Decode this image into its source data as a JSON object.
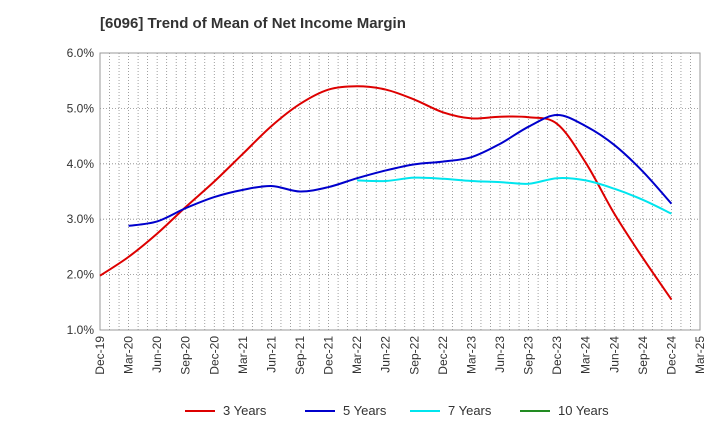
{
  "chart_data": {
    "type": "line",
    "title": "[6096]  Trend of Mean of Net Income Margin",
    "xlabel": "",
    "ylabel": "",
    "ylim": [
      1.0,
      6.0
    ],
    "y_ticks": [
      "1.0%",
      "2.0%",
      "3.0%",
      "4.0%",
      "5.0%",
      "6.0%"
    ],
    "x_ticks": [
      "Dec-19",
      "Mar-20",
      "Jun-20",
      "Sep-20",
      "Dec-20",
      "Mar-21",
      "Jun-21",
      "Sep-21",
      "Dec-21",
      "Mar-22",
      "Jun-22",
      "Sep-22",
      "Dec-22",
      "Mar-23",
      "Jun-23",
      "Sep-23",
      "Dec-23",
      "Mar-24",
      "Jun-24",
      "Sep-24",
      "Dec-24",
      "Mar-25"
    ],
    "grid": true,
    "legend_position": "bottom",
    "series": [
      {
        "name": "3 Years",
        "color": "#dd0000",
        "x": [
          "Dec-19",
          "Mar-20",
          "Jun-20",
          "Sep-20",
          "Dec-20",
          "Mar-21",
          "Jun-21",
          "Sep-21",
          "Dec-21",
          "Mar-22",
          "Jun-22",
          "Sep-22",
          "Dec-22",
          "Mar-23",
          "Jun-23",
          "Sep-23",
          "Dec-23",
          "Mar-24",
          "Jun-24",
          "Sep-24",
          "Dec-24"
        ],
        "values": [
          1.98,
          2.32,
          2.74,
          3.22,
          3.68,
          4.18,
          4.68,
          5.08,
          5.34,
          5.4,
          5.34,
          5.16,
          4.93,
          4.82,
          4.85,
          4.84,
          4.72,
          4.02,
          3.1,
          2.3,
          1.55
        ]
      },
      {
        "name": "5 Years",
        "color": "#0000cc",
        "x": [
          "Mar-20",
          "Jun-20",
          "Sep-20",
          "Dec-20",
          "Mar-21",
          "Jun-21",
          "Sep-21",
          "Dec-21",
          "Mar-22",
          "Jun-22",
          "Sep-22",
          "Dec-22",
          "Mar-23",
          "Jun-23",
          "Sep-23",
          "Dec-23",
          "Mar-24",
          "Jun-24",
          "Sep-24",
          "Dec-24"
        ],
        "values": [
          2.88,
          2.96,
          3.2,
          3.4,
          3.53,
          3.6,
          3.5,
          3.58,
          3.74,
          3.88,
          3.99,
          4.04,
          4.12,
          4.36,
          4.67,
          4.88,
          4.68,
          4.34,
          3.86,
          3.28
        ]
      },
      {
        "name": "7 Years",
        "color": "#00e5ee",
        "x": [
          "Mar-22",
          "Jun-22",
          "Sep-22",
          "Dec-22",
          "Mar-23",
          "Jun-23",
          "Sep-23",
          "Dec-23",
          "Mar-24",
          "Jun-24",
          "Sep-24",
          "Dec-24"
        ],
        "values": [
          3.7,
          3.69,
          3.75,
          3.73,
          3.69,
          3.67,
          3.64,
          3.74,
          3.7,
          3.55,
          3.35,
          3.1
        ]
      },
      {
        "name": "10 Years",
        "color": "#228b22",
        "x": [],
        "values": []
      }
    ]
  }
}
